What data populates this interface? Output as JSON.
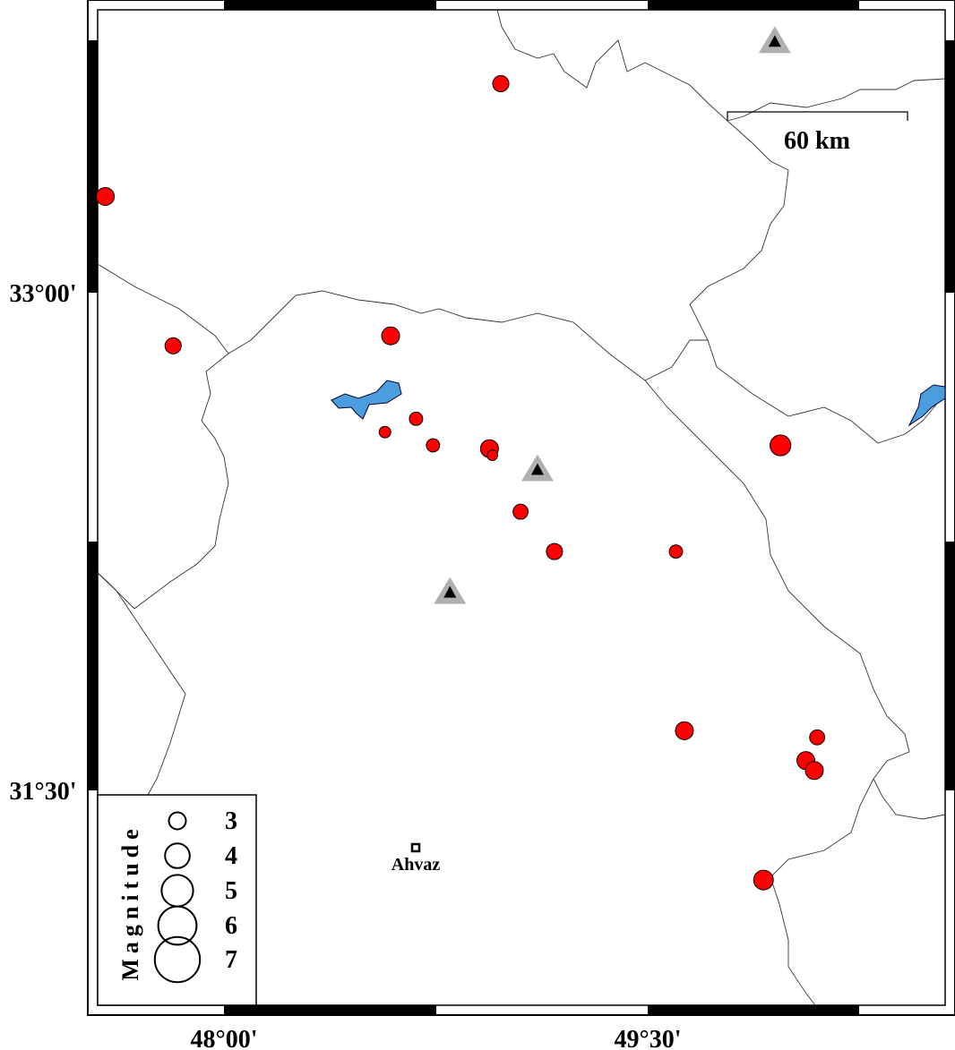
{
  "map": {
    "axes": {
      "x_ticks": [
        {
          "lon": 48.0,
          "label": "48°00'"
        },
        {
          "lon": 49.5,
          "label": "49°30'"
        }
      ],
      "y_ticks": [
        {
          "lat": 33.0,
          "label": "33°00'"
        },
        {
          "lat": 31.5,
          "label": "31°30'"
        }
      ]
    },
    "scale_bar": {
      "label": "60 km"
    },
    "city": {
      "name": "Ahvaz",
      "lon": 48.68,
      "lat": 31.32
    },
    "colors": {
      "event": "#ff0000",
      "water": "#4a9ede",
      "station": "#b0b0b0",
      "station_inner": "#000000"
    },
    "events": [
      {
        "lon": 48.98,
        "lat": 33.63,
        "mag": 2.7
      },
      {
        "lon": 47.58,
        "lat": 33.29,
        "mag": 3.0
      },
      {
        "lon": 47.82,
        "lat": 32.84,
        "mag": 2.7
      },
      {
        "lon": 48.59,
        "lat": 32.87,
        "mag": 3.0
      },
      {
        "lon": 48.68,
        "lat": 32.62,
        "mag": 2.2
      },
      {
        "lon": 48.57,
        "lat": 32.58,
        "mag": 1.9
      },
      {
        "lon": 48.74,
        "lat": 32.54,
        "mag": 2.2
      },
      {
        "lon": 48.94,
        "lat": 32.53,
        "mag": 3.0
      },
      {
        "lon": 48.95,
        "lat": 32.51,
        "mag": 1.7
      },
      {
        "lon": 49.05,
        "lat": 32.34,
        "mag": 2.5
      },
      {
        "lon": 49.17,
        "lat": 32.22,
        "mag": 2.7
      },
      {
        "lon": 49.6,
        "lat": 32.22,
        "mag": 2.2
      },
      {
        "lon": 49.97,
        "lat": 32.54,
        "mag": 3.5
      },
      {
        "lon": 49.63,
        "lat": 31.68,
        "mag": 3.0
      },
      {
        "lon": 50.1,
        "lat": 31.66,
        "mag": 2.5
      },
      {
        "lon": 50.06,
        "lat": 31.59,
        "mag": 3.0
      },
      {
        "lon": 50.09,
        "lat": 31.56,
        "mag": 3.0
      },
      {
        "lon": 49.91,
        "lat": 31.23,
        "mag": 3.3
      }
    ],
    "stations": [
      {
        "lon": 49.95,
        "lat": 33.76
      },
      {
        "lon": 49.11,
        "lat": 32.47
      },
      {
        "lon": 48.8,
        "lat": 32.1
      }
    ],
    "legend": {
      "title": "Magnitude",
      "items": [
        {
          "mag": 3,
          "label": "3"
        },
        {
          "mag": 4,
          "label": "4"
        },
        {
          "mag": 5,
          "label": "5"
        },
        {
          "mag": 6,
          "label": "6"
        },
        {
          "mag": 7,
          "label": "7"
        }
      ]
    }
  }
}
